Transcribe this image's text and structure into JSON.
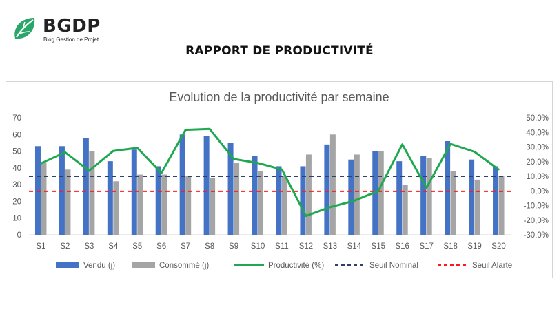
{
  "brand": {
    "name": "BGDP",
    "tagline": "Blog Gestion de Projet",
    "accent": "#2aa66a"
  },
  "report_title": "RAPPORT DE PRODUCTIVITÉ",
  "chart_data": {
    "type": "bar+line",
    "title": "Evolution de la productivité par semaine",
    "categories": [
      "S1",
      "S2",
      "S3",
      "S4",
      "S5",
      "S6",
      "S7",
      "S8",
      "S9",
      "S10",
      "S11",
      "S12",
      "S13",
      "S14",
      "S15",
      "S16",
      "S17",
      "S18",
      "S19",
      "S20"
    ],
    "series": [
      {
        "name": "Vendu (j)",
        "type": "bar",
        "axis": "left",
        "color": "#4472c4",
        "values": [
          53,
          53,
          58,
          44,
          51,
          41,
          60,
          59,
          55,
          47,
          41,
          41,
          54,
          45,
          50,
          44,
          47,
          56,
          45,
          41
        ]
      },
      {
        "name": "Consommé (j)",
        "type": "bar",
        "axis": "left",
        "color": "#a5a5a5",
        "values": [
          43,
          39,
          50,
          32,
          36,
          36,
          35,
          34,
          43,
          38,
          35,
          48,
          60,
          48,
          50,
          30,
          46,
          38,
          33,
          35
        ]
      },
      {
        "name": "Productivité (%)",
        "type": "line",
        "axis": "right",
        "color": "#1fa84f",
        "values": [
          18.8,
          26.4,
          13.8,
          27.3,
          29.4,
          12.2,
          41.7,
          42.4,
          21.8,
          19.1,
          14.6,
          -17.1,
          -11.1,
          -6.7,
          0.0,
          31.8,
          2.1,
          32.1,
          26.7,
          14.6
        ]
      },
      {
        "name": "Seuil Nominal",
        "type": "hline",
        "axis": "left",
        "value": 35,
        "color": "#2f3f6e"
      },
      {
        "name": "Seuil Alarte",
        "type": "hline",
        "axis": "left",
        "value": 26,
        "color": "#ff1a1a"
      }
    ],
    "y_left": {
      "min": 0,
      "max": 70,
      "ticks": [
        "0",
        "10",
        "20",
        "30",
        "40",
        "50",
        "60",
        "70"
      ]
    },
    "y_right": {
      "min": -30,
      "max": 50,
      "ticks": [
        "-30,0%",
        "-20,0%",
        "-10,0%",
        "0,0%",
        "10,0%",
        "20,0%",
        "30,0%",
        "40,0%",
        "50,0%"
      ]
    },
    "grid": false,
    "legend": "bottom"
  }
}
